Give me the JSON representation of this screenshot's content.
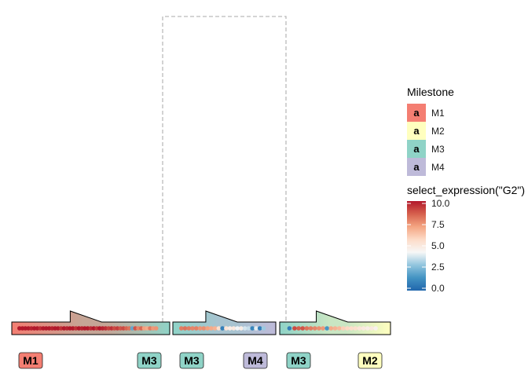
{
  "chart_data": {
    "type": "trajectory_dimred",
    "milestone_colors": {
      "M1": "#F47E72",
      "M2": "#FFFFBF",
      "M3": "#8FD3C7",
      "M4": "#BEBAD9"
    },
    "edges": [
      {
        "from": "M1",
        "to": "M3",
        "arrow_color": "#C5A596"
      },
      {
        "from": "M3",
        "to": "M4",
        "arrow_color": "#A7C3D0"
      },
      {
        "from": "M3",
        "to": "M2",
        "arrow_color": "#C9E6C3"
      }
    ],
    "milestone_labels": [
      {
        "segment": 0,
        "end": "start",
        "text": "M1"
      },
      {
        "segment": 0,
        "end": "end",
        "text": "M3"
      },
      {
        "segment": 1,
        "end": "start",
        "text": "M3"
      },
      {
        "segment": 1,
        "end": "end",
        "text": "M4"
      },
      {
        "segment": 2,
        "end": "start",
        "text": "M3"
      },
      {
        "segment": 2,
        "end": "end",
        "text": "M2"
      }
    ],
    "connection": {
      "style": "dashed",
      "color": "#BBBBBB",
      "joins": [
        "M3",
        "M3"
      ]
    },
    "cells": [
      {
        "segment": 0,
        "pos": [
          0.02,
          0.04,
          0.06,
          0.08,
          0.1,
          0.12,
          0.14,
          0.16,
          0.18,
          0.2,
          0.22,
          0.24,
          0.26,
          0.28,
          0.3,
          0.32,
          0.34,
          0.36,
          0.38,
          0.4,
          0.42,
          0.44,
          0.46,
          0.48,
          0.5,
          0.52,
          0.54,
          0.56,
          0.58,
          0.6,
          0.62,
          0.64,
          0.66,
          0.68,
          0.7,
          0.72,
          0.74,
          0.76,
          0.78,
          0.8,
          0.82,
          0.84,
          0.86,
          0.88,
          0.9,
          0.92,
          0.94
        ],
        "expr": [
          10,
          10,
          10,
          10,
          9.8,
          10,
          10,
          9.6,
          10,
          10,
          10,
          9.8,
          10,
          10,
          9.5,
          10,
          9.8,
          10,
          10,
          9.5,
          10,
          9.8,
          10,
          10,
          9.6,
          10,
          9.4,
          10,
          9.8,
          9.6,
          9.2,
          9.5,
          9.0,
          9.3,
          8.8,
          9.0,
          8.5,
          8.2,
          2.0,
          8.8,
          7.8,
          8.4,
          7.2,
          7.0,
          8.0,
          7.4,
          7.5
        ]
      },
      {
        "segment": 1,
        "pos": [
          0.04,
          0.08,
          0.12,
          0.16,
          0.2,
          0.24,
          0.28,
          0.32,
          0.36,
          0.4,
          0.44,
          0.48,
          0.52,
          0.56,
          0.6,
          0.64,
          0.68,
          0.72,
          0.76,
          0.8,
          0.84,
          0.88,
          0.92
        ],
        "expr": [
          8,
          8.2,
          8,
          7.8,
          7.9,
          7.5,
          7.6,
          7.2,
          7.0,
          6.8,
          5.5,
          0.8,
          5.2,
          4.8,
          5.0,
          4.2,
          4.8,
          3.8,
          3.6,
          1.0,
          4.0,
          0.8,
          3.0
        ]
      },
      {
        "segment": 2,
        "pos": [
          0.05,
          0.1,
          0.14,
          0.18,
          0.22,
          0.26,
          0.3,
          0.34,
          0.38,
          0.42,
          0.46,
          0.5,
          0.54,
          0.58,
          0.62,
          0.66,
          0.7,
          0.74,
          0.78,
          0.82,
          0.86,
          0.9
        ],
        "expr": [
          0.8,
          9.0,
          8.6,
          8.8,
          8.2,
          8.0,
          7.8,
          7.6,
          7.4,
          1.5,
          7.0,
          6.8,
          6.6,
          6.0,
          5.8,
          5.6,
          5.5,
          5.2,
          5.0,
          4.8,
          5.0,
          4.6
        ]
      }
    ],
    "color_scale": {
      "title": "select_expression(\"G2\")",
      "min": 0,
      "max": 10.0,
      "ticks": [
        0.0,
        2.5,
        5.0,
        7.5,
        10.0
      ],
      "tick_labels": [
        "0.0",
        "2.5",
        "5.0",
        "7.5",
        "10.0"
      ],
      "stops": [
        "#2166AC",
        "#4393C3",
        "#92C5DE",
        "#F7F7F7",
        "#FDDBC7",
        "#F4A582",
        "#D6604D",
        "#B2182B"
      ]
    },
    "legend": {
      "title": "Milestone",
      "key_glyph": "a",
      "items": [
        {
          "label": "M1",
          "color": "#F47E72"
        },
        {
          "label": "M2",
          "color": "#FFFFBF"
        },
        {
          "label": "M3",
          "color": "#8FD3C7"
        },
        {
          "label": "M4",
          "color": "#BEBAD9"
        }
      ]
    }
  }
}
